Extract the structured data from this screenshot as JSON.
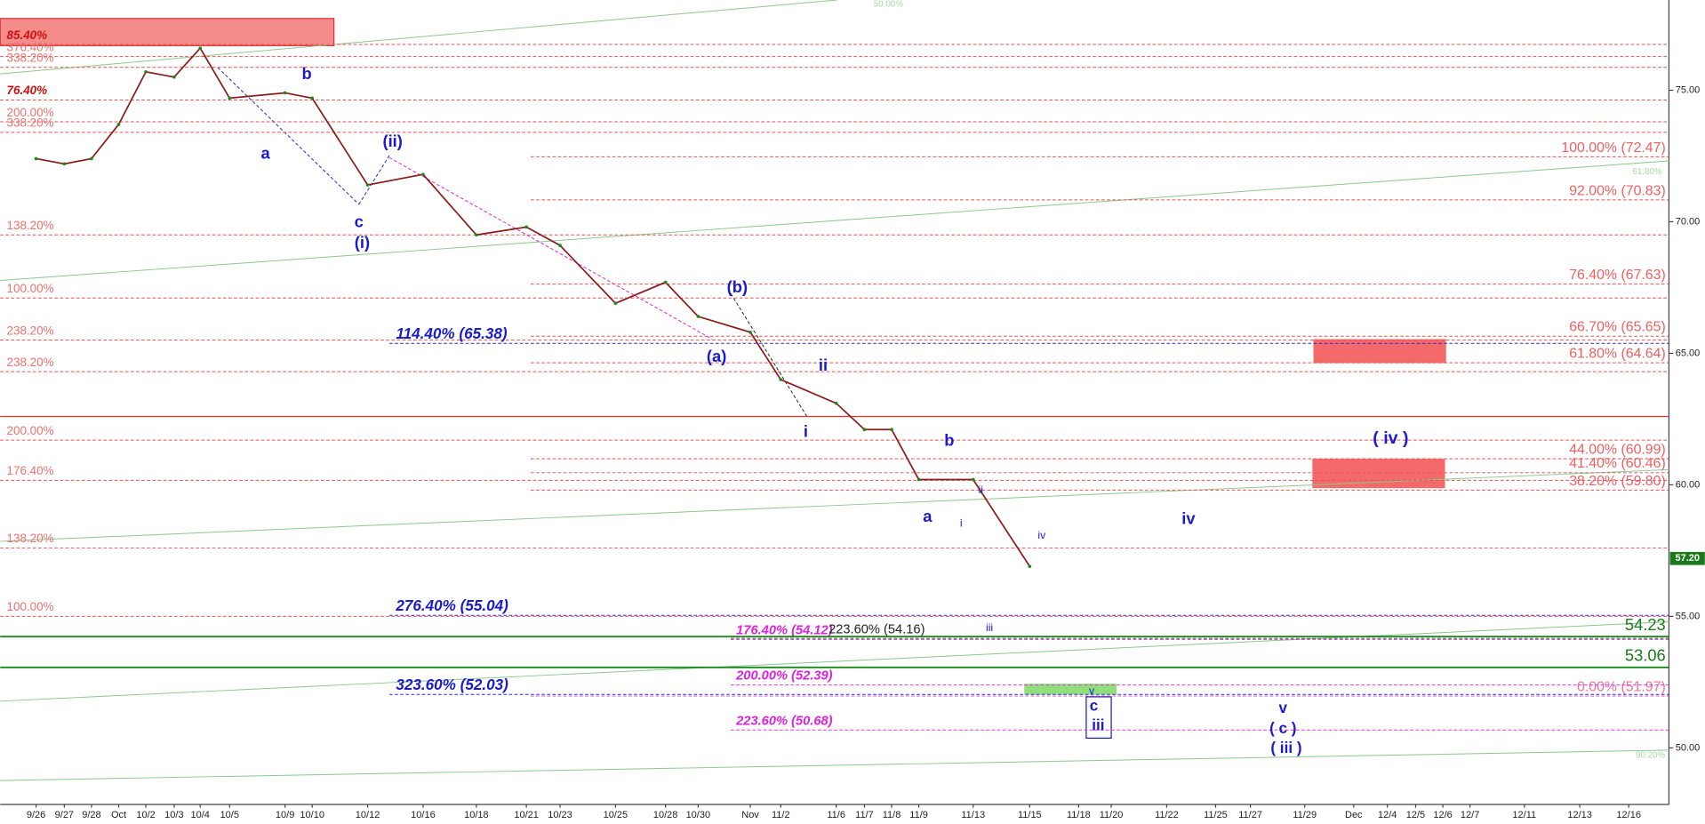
{
  "chart_data": {
    "type": "line",
    "categories": [
      "9/26",
      "9/27",
      "9/28",
      "Oct",
      "10/2",
      "10/3",
      "10/4",
      "10/5",
      "10/9",
      "10/10",
      "10/12",
      "10/16",
      "10/18",
      "10/21",
      "10/23",
      "10/25",
      "10/28",
      "10/30",
      "Nov",
      "11/2",
      "11/6",
      "11/7",
      "11/8",
      "11/9",
      "11/13",
      "11/15",
      "11/18",
      "11/20",
      "11/22",
      "11/25",
      "11/27",
      "11/29",
      "Dec",
      "12/4",
      "12/5",
      "12/6",
      "12/7",
      "12/11",
      "12/13",
      "12/16"
    ],
    "values": [
      72.4,
      72.2,
      72.4,
      73.7,
      75.7,
      75.5,
      76.6,
      74.7,
      74.9,
      74.7,
      71.4,
      71.8,
      69.5,
      69.8,
      69.1,
      66.9,
      67.7,
      66.4,
      65.8,
      64.0,
      63.1,
      62.1,
      62.1,
      60.2,
      60.2,
      56.9,
      null,
      null,
      null,
      null,
      null,
      null,
      null,
      null,
      null,
      null,
      null,
      null,
      null,
      null
    ],
    "color": "#8b1a1a",
    "ylim": [
      47.85,
      78.43
    ],
    "yticks": [
      {
        "value": 50,
        "label": "50.00"
      },
      {
        "value": 55,
        "label": "55.00"
      },
      {
        "value": 60,
        "label": "60.00"
      },
      {
        "value": 65,
        "label": "65.00"
      },
      {
        "value": 70,
        "label": "70.00"
      },
      {
        "value": 75,
        "label": "75.00"
      }
    ],
    "last_price": {
      "value": 57.2,
      "label": "57.20"
    },
    "pivot_level": 62.6,
    "left_fib_levels": [
      {
        "label": "85.40%",
        "value": 76.74
      },
      {
        "label": "376.40%",
        "value": 76.28
      },
      {
        "label": "338.20%",
        "value": 75.87
      },
      {
        "label": "76.40%",
        "value": 74.63
      },
      {
        "label": "200.00%",
        "value": 73.8
      },
      {
        "label": "338.20%",
        "value": 73.4
      },
      {
        "label": "138.20%",
        "value": 69.5
      },
      {
        "label": "100.00%",
        "value": 67.1
      },
      {
        "label": "238.20%",
        "value": 65.5
      },
      {
        "label": "238.20%",
        "value": 64.3
      },
      {
        "label": "200.00%",
        "value": 61.7
      },
      {
        "label": "176.40%",
        "value": 60.17
      },
      {
        "label": "138.20%",
        "value": 57.6
      },
      {
        "label": "100.00%",
        "value": 55.0
      }
    ],
    "target_levels": [
      {
        "label": "100.00% (72.47)",
        "value": 72.47
      },
      {
        "label": "92.00% (70.83)",
        "value": 70.83
      },
      {
        "label": "76.40% (67.63)",
        "value": 67.63
      },
      {
        "label": "66.70% (65.65)",
        "value": 65.65
      },
      {
        "label": "61.80% (64.64)",
        "value": 64.64
      },
      {
        "label": "44.00% (60.99)",
        "value": 60.99
      },
      {
        "label": "41.40% (60.46)",
        "value": 60.46
      },
      {
        "label": "38.20% (59.80)",
        "value": 59.8
      },
      {
        "label": "0.00% (51.97)",
        "value": 51.97
      }
    ],
    "extension_levels": [
      {
        "label": "114.40% (65.38)",
        "value": 65.38
      },
      {
        "label": "276.40% (55.04)",
        "value": 55.04
      },
      {
        "label": "323.60% (52.03)",
        "value": 52.03
      }
    ],
    "projection_levels": [
      {
        "label": "176.40% (54.12)",
        "value": 54.12
      },
      {
        "label": "223.60% (54.16)",
        "value": 54.16
      },
      {
        "label": "200.00% (52.39)",
        "value": 52.39
      },
      {
        "label": "223.60% (50.68)",
        "value": 50.68
      }
    ],
    "support_levels": [
      {
        "label": "54.23",
        "value": 54.23
      },
      {
        "label": "53.06",
        "value": 53.06
      }
    ],
    "trendline_labels": [
      "50.00%",
      "61.80%",
      "90.20%"
    ],
    "wave_labels": [
      "a",
      "b",
      "c",
      "(i)",
      "(ii)",
      "(b)",
      "(a)",
      "ii",
      "i",
      "b",
      "a",
      "ii",
      "i",
      "iii",
      "iv",
      "v",
      "c",
      "iii",
      "iv",
      "( iv )",
      "v",
      "( c )",
      "( iii )"
    ]
  }
}
